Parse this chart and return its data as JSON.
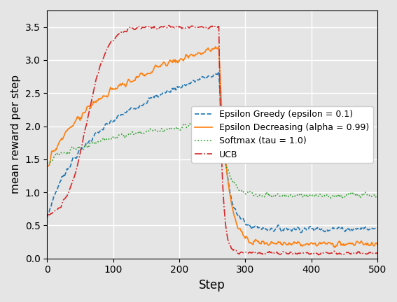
{
  "xlabel": "Step",
  "ylabel": "mean reward per step",
  "xlim": [
    0,
    500
  ],
  "ylim": [
    0,
    3.75
  ],
  "yticks": [
    0.0,
    0.5,
    1.0,
    1.5,
    2.0,
    2.5,
    3.0,
    3.5
  ],
  "xticks": [
    0,
    100,
    200,
    300,
    400,
    500
  ],
  "figsize": [
    5.67,
    4.32
  ],
  "dpi": 100,
  "background_color": "#e5e5e5",
  "legend_labels": [
    "Epsilon Greedy (epsilon = 0.1)",
    "Epsilon Decreasing (alpha = 0.99)",
    "Softmax (tau = 1.0)",
    "UCB"
  ],
  "line_colors": [
    "#1f77b4",
    "#ff7f0e",
    "#2ca02c",
    "#d62728"
  ],
  "line_styles": [
    "--",
    "-",
    ":",
    "-."
  ],
  "drop_step": 260,
  "eg_start": 0.6,
  "eg_peak": 2.8,
  "eg_flat": 0.45,
  "ed_start": 1.38,
  "ed_peak": 3.2,
  "ed_flat": 0.22,
  "sm_start": 1.45,
  "sm_peak": 2.05,
  "sm_flat": 0.95,
  "ucb_start": 0.6,
  "ucb_peak": 3.5,
  "ucb_flat": 0.08
}
